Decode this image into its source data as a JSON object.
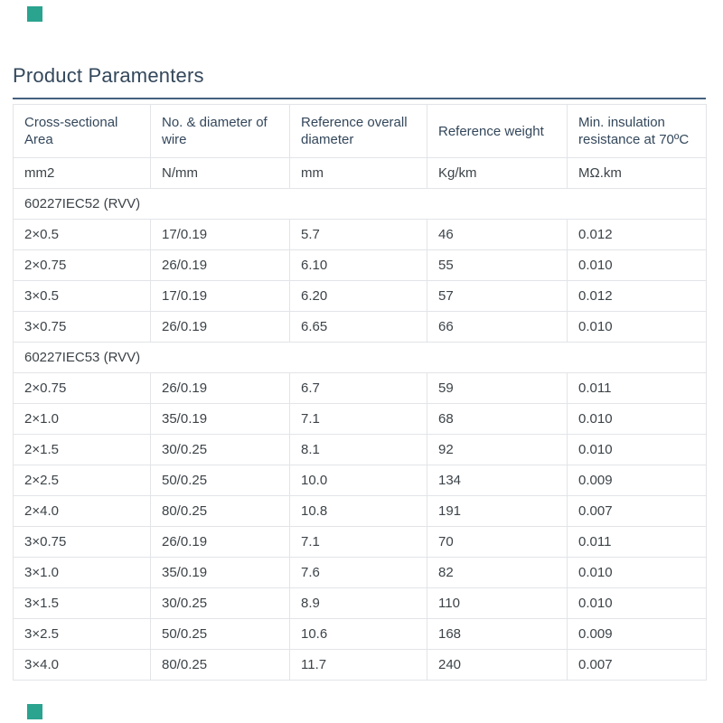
{
  "page": {
    "title": "Product Paramenters",
    "accent_color": "#44617f",
    "corner_square_color": "#2aa38f"
  },
  "table": {
    "columns": [
      "Cross-sectional Area",
      "No. & diameter of wire",
      "Reference overall diameter",
      "Reference weight",
      "Min. insulation resistance at 70ºC"
    ],
    "units": [
      "mm2",
      "N/mm",
      "mm",
      "Kg/km",
      "MΩ.km"
    ],
    "sections": [
      {
        "label": "60227IEC52 (RVV)",
        "rows": [
          [
            "2×0.5",
            "17/0.19",
            "5.7",
            "46",
            "0.012"
          ],
          [
            "2×0.75",
            "26/0.19",
            "6.10",
            "55",
            "0.010"
          ],
          [
            "3×0.5",
            "17/0.19",
            "6.20",
            "57",
            "0.012"
          ],
          [
            "3×0.75",
            "26/0.19",
            "6.65",
            "66",
            "0.010"
          ]
        ]
      },
      {
        "label": "60227IEC53 (RVV)",
        "rows": [
          [
            "2×0.75",
            "26/0.19",
            "6.7",
            "59",
            "0.011"
          ],
          [
            "2×1.0",
            "35/0.19",
            "7.1",
            "68",
            "0.010"
          ],
          [
            "2×1.5",
            "30/0.25",
            "8.1",
            "92",
            "0.010"
          ],
          [
            "2×2.5",
            "50/0.25",
            "10.0",
            "134",
            "0.009"
          ],
          [
            "2×4.0",
            "80/0.25",
            "10.8",
            "191",
            "0.007"
          ],
          [
            "3×0.75",
            "26/0.19",
            "7.1",
            "70",
            "0.011"
          ],
          [
            "3×1.0",
            "35/0.19",
            "7.6",
            "82",
            "0.010"
          ],
          [
            "3×1.5",
            "30/0.25",
            "8.9",
            "110",
            "0.010"
          ],
          [
            "3×2.5",
            "50/0.25",
            "10.6",
            "168",
            "0.009"
          ],
          [
            "3×4.0",
            "80/0.25",
            "11.7",
            "240",
            "0.007"
          ]
        ]
      }
    ]
  }
}
